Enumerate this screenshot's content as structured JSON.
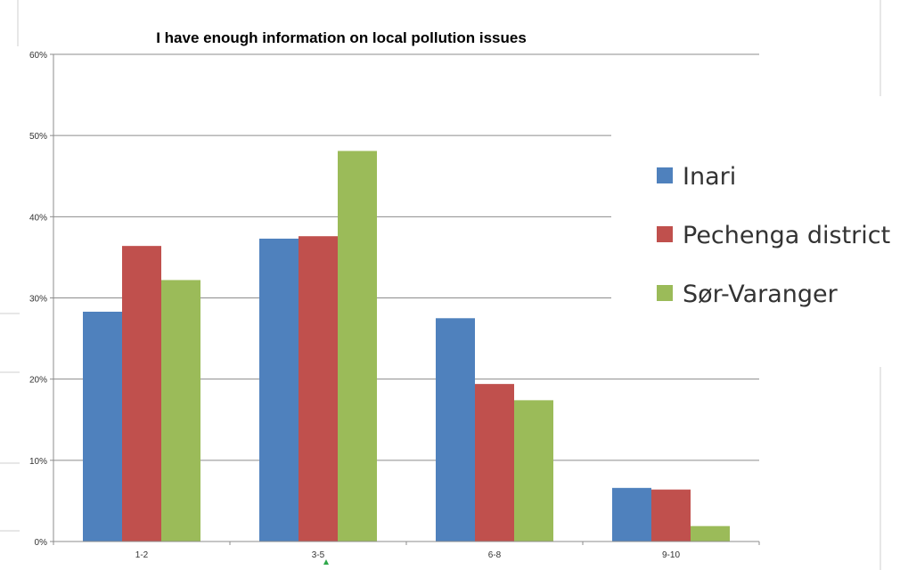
{
  "chart_data": {
    "type": "bar",
    "title": "I have enough information on local pollution issues",
    "xlabel": "",
    "ylabel": "",
    "categories": [
      "1-2",
      "3-5",
      "6-8",
      "9-10"
    ],
    "ylim": [
      0,
      60
    ],
    "yticks": [
      "0%",
      "10%",
      "20%",
      "30%",
      "40%",
      "50%",
      "60%"
    ],
    "grid": true,
    "legend_position": "right",
    "series": [
      {
        "name": "Inari",
        "color": "#4F81BD",
        "values": [
          28.3,
          37.3,
          27.5,
          6.6
        ]
      },
      {
        "name": "Pechenga district",
        "color": "#C0504D",
        "values": [
          36.4,
          37.6,
          19.4,
          6.4
        ]
      },
      {
        "name": "Sør-Varanger",
        "color": "#9BBB59",
        "values": [
          32.2,
          48.1,
          17.4,
          1.9
        ]
      }
    ]
  }
}
